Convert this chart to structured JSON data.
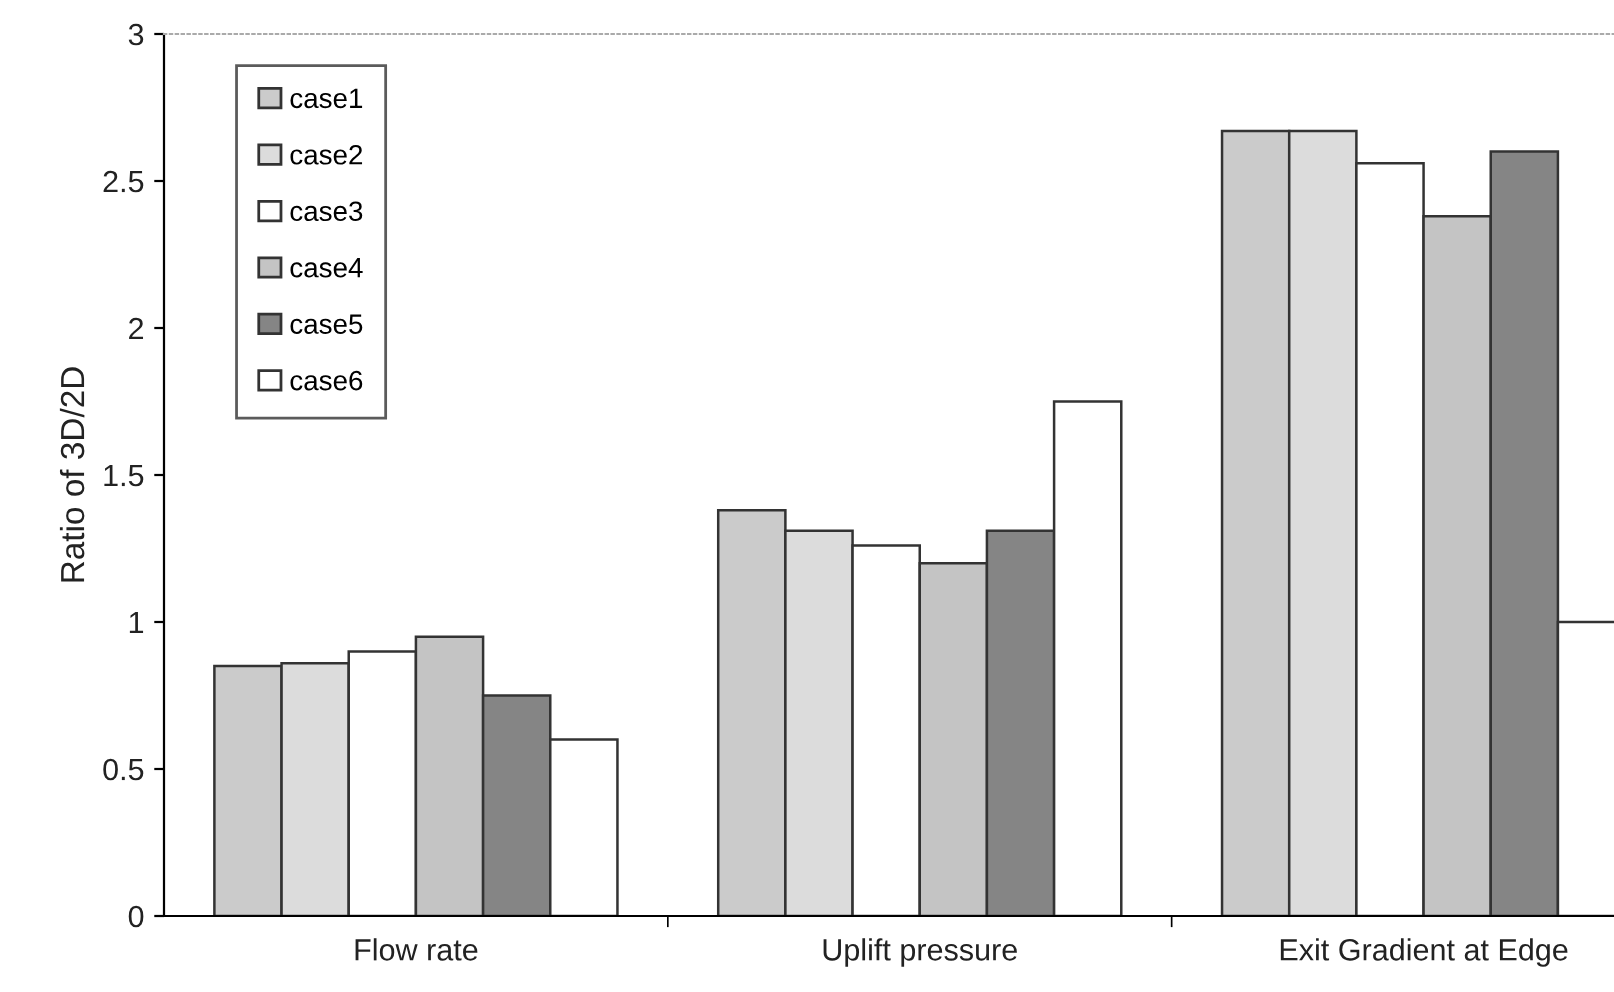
{
  "chart_data": {
    "type": "bar",
    "ylabel": "Ratio of 3D/2D",
    "categories": [
      "Flow rate",
      "Uplift pressure",
      "Exit Gradient at Edge"
    ],
    "series": [
      {
        "name": "case1",
        "color": "#cbcbcb",
        "values": [
          0.85,
          1.38,
          2.67
        ]
      },
      {
        "name": "case2",
        "color": "#dcdcdc",
        "values": [
          0.86,
          1.31,
          2.67
        ]
      },
      {
        "name": "case3",
        "color": "#ffffff",
        "values": [
          0.9,
          1.26,
          2.56
        ]
      },
      {
        "name": "case4",
        "color": "#c4c4c4",
        "values": [
          0.95,
          1.2,
          2.38
        ]
      },
      {
        "name": "case5",
        "color": "#858585",
        "values": [
          0.75,
          1.31,
          2.6
        ]
      },
      {
        "name": "case6",
        "color": "#ffffff",
        "values": [
          0.6,
          1.75,
          1.0
        ]
      }
    ],
    "ylim": [
      0,
      3
    ],
    "yticks": [
      0,
      0.5,
      1,
      1.5,
      2,
      2.5,
      3
    ],
    "grid": false,
    "legend": "top left"
  }
}
